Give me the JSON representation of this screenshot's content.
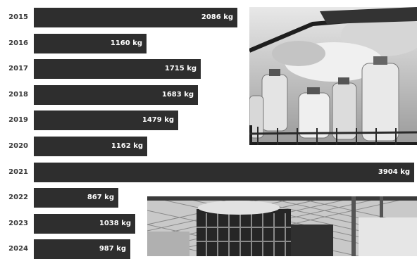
{
  "chart_data": {
    "type": "bar",
    "orientation": "horizontal",
    "categories": [
      "2015",
      "2016",
      "2017",
      "2018",
      "2019",
      "2020",
      "2021",
      "2022",
      "2023",
      "2024"
    ],
    "values": [
      2086,
      1160,
      1715,
      1683,
      1479,
      1162,
      3904,
      867,
      1038,
      987
    ],
    "value_labels": [
      "2086 kg",
      "1160 kg",
      "1715 kg",
      "1683 kg",
      "1479 kg",
      "1162 kg",
      "3904 kg",
      "867 kg",
      "1038 kg",
      "987 kg"
    ],
    "unit": "kg",
    "title": "",
    "xlabel": "",
    "ylabel": "",
    "xlim": [
      0,
      3904
    ],
    "grid": false,
    "bar_color": "#2e2e2e"
  },
  "photos": {
    "top": "photo of crates holding plastic water bottles and bagged produce",
    "bottom": "photo of stacked plastic crates beside a chain-link fence"
  }
}
